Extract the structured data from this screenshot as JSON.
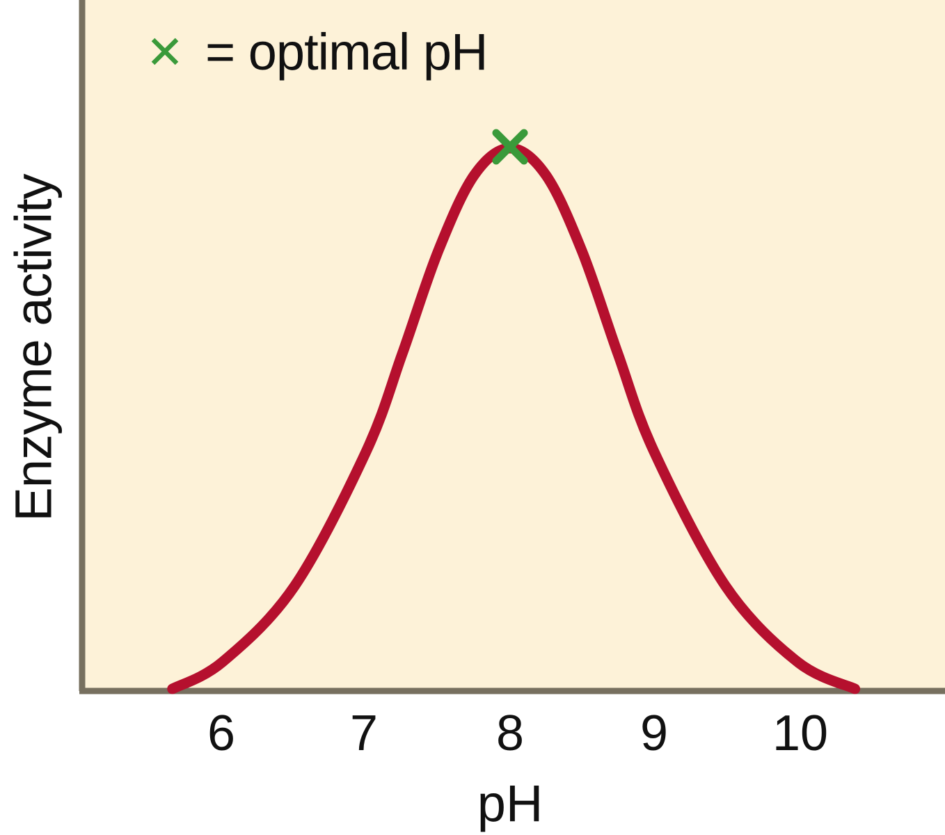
{
  "chart_data": {
    "type": "line",
    "title": "",
    "xlabel": "pH",
    "ylabel": "Enzyme activity",
    "x_ticks": [
      "6",
      "7",
      "8",
      "9",
      "10"
    ],
    "y_ticks": [],
    "xlim": [
      5.0,
      11.0
    ],
    "ylim": [
      0,
      1.0
    ],
    "grid": false,
    "legend": {
      "position": "top-left",
      "entries": [
        {
          "marker": "x",
          "color": "#3a9a3a",
          "label": "= optimal pH"
        }
      ]
    },
    "series": [
      {
        "name": "Enzyme activity",
        "color": "#b5102e",
        "x": [
          5.65,
          6.0,
          6.5,
          7.0,
          7.25,
          7.5,
          7.75,
          8.0,
          8.25,
          8.5,
          8.75,
          9.0,
          9.5,
          10.0,
          10.4
        ],
        "y": [
          0.0,
          0.05,
          0.19,
          0.44,
          0.62,
          0.81,
          0.95,
          1.0,
          0.95,
          0.81,
          0.62,
          0.44,
          0.19,
          0.05,
          0.0
        ]
      }
    ],
    "annotations": [
      {
        "type": "marker",
        "symbol": "x",
        "color": "#3a9a3a",
        "x": 8.0,
        "y": 1.0,
        "label": "optimal pH"
      }
    ]
  },
  "legend": {
    "marker_symbol": "✕",
    "text": "= optimal pH"
  },
  "axes": {
    "y_label": "Enzyme activity",
    "x_label": "pH",
    "x_ticks": [
      "6",
      "7",
      "8",
      "9",
      "10"
    ]
  },
  "colors": {
    "plot_background": "#fdf2d8",
    "axis": "#77705f",
    "curve": "#b5102e",
    "optimal_marker": "#3a9a3a"
  }
}
